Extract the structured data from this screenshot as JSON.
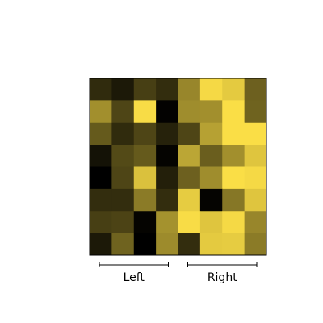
{
  "chart_data": {
    "type": "heatmap",
    "rows": 8,
    "cols": 8,
    "colormap": "black-to-yellow",
    "colors": {
      "low": "#000000",
      "high": "#fde047",
      "border": "#000000",
      "bracket": "#000000"
    },
    "values": [
      [
        0.19,
        0.11,
        0.28,
        0.2,
        0.6,
        0.97,
        0.9,
        0.43
      ],
      [
        0.64,
        0.31,
        0.98,
        0.01,
        0.63,
        0.64,
        0.99,
        0.44
      ],
      [
        0.4,
        0.19,
        0.31,
        0.15,
        0.31,
        0.72,
        0.99,
        0.99
      ],
      [
        0.08,
        0.33,
        0.4,
        0.02,
        0.74,
        0.42,
        0.64,
        0.88
      ],
      [
        0.0,
        0.31,
        0.86,
        0.14,
        0.43,
        0.63,
        0.99,
        0.97
      ],
      [
        0.2,
        0.2,
        0.55,
        0.2,
        0.91,
        0.02,
        0.53,
        0.88
      ],
      [
        0.28,
        0.3,
        0.02,
        0.65,
        0.98,
        0.88,
        0.97,
        0.6
      ],
      [
        0.11,
        0.44,
        0.0,
        0.62,
        0.2,
        0.9,
        0.91,
        0.55
      ]
    ],
    "groups": [
      {
        "label": "Left",
        "start_col": 0,
        "end_col": 3
      },
      {
        "label": "Right",
        "start_col": 4,
        "end_col": 7
      }
    ],
    "grid": false,
    "legend": false
  }
}
